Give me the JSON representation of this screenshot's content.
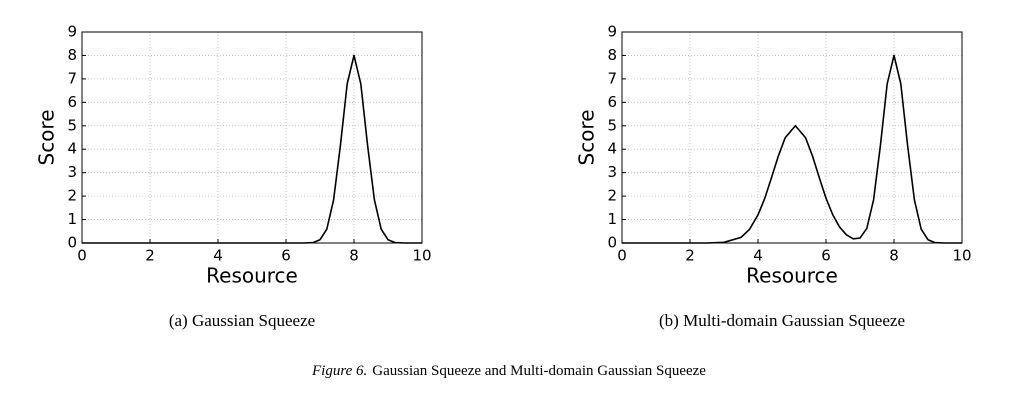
{
  "chart_data": [
    {
      "type": "line",
      "caption": "(a) Gaussian Squeeze",
      "xlabel": "Resource",
      "ylabel": "Score",
      "x": [
        0,
        6,
        6.5,
        6.8,
        7,
        7.2,
        7.4,
        7.6,
        7.8,
        8,
        8.2,
        8.4,
        8.6,
        8.8,
        9,
        9.2,
        9.5,
        10
      ],
      "values": [
        0,
        0,
        0,
        0.02,
        0.14,
        0.59,
        1.84,
        4.16,
        6.79,
        8,
        6.79,
        4.16,
        1.84,
        0.59,
        0.14,
        0.02,
        0,
        0
      ],
      "color": "#000000",
      "xlim": [
        0,
        10
      ],
      "ylim": [
        0,
        9
      ],
      "xticks": [
        0,
        2,
        4,
        6,
        8,
        10
      ],
      "yticks": [
        0,
        1,
        2,
        3,
        4,
        5,
        6,
        7,
        8,
        9
      ],
      "grid": true
    },
    {
      "type": "line",
      "caption": "(b) Multi-domain Gaussian Squeeze",
      "xlabel": "Resource",
      "ylabel": "Score",
      "x": [
        0,
        1,
        2,
        2.5,
        3,
        3.5,
        3.75,
        4,
        4.2,
        4.4,
        4.6,
        4.8,
        5.1,
        5.4,
        5.6,
        5.8,
        6,
        6.2,
        6.4,
        6.6,
        6.8,
        7,
        7.2,
        7.4,
        7.6,
        7.8,
        8,
        8.2,
        8.4,
        8.6,
        8.8,
        9,
        9.2,
        9.5,
        10
      ],
      "values": [
        0,
        0,
        0,
        0,
        0.03,
        0.24,
        0.58,
        1.2,
        1.91,
        2.8,
        3.72,
        4.49,
        5,
        4.49,
        3.72,
        2.8,
        1.91,
        1.2,
        0.68,
        0.35,
        0.18,
        0.21,
        0.62,
        1.85,
        4.16,
        6.79,
        8,
        6.79,
        4.16,
        1.84,
        0.59,
        0.14,
        0.02,
        0,
        0
      ],
      "color": "#000000",
      "xlim": [
        0,
        10
      ],
      "ylim": [
        0,
        9
      ],
      "xticks": [
        0,
        2,
        4,
        6,
        8,
        10
      ],
      "yticks": [
        0,
        1,
        2,
        3,
        4,
        5,
        6,
        7,
        8,
        9
      ],
      "grid": true
    }
  ],
  "figure_label": "Figure 6.",
  "figure_caption": "Gaussian Squeeze and Multi-domain Gaussian Squeeze"
}
